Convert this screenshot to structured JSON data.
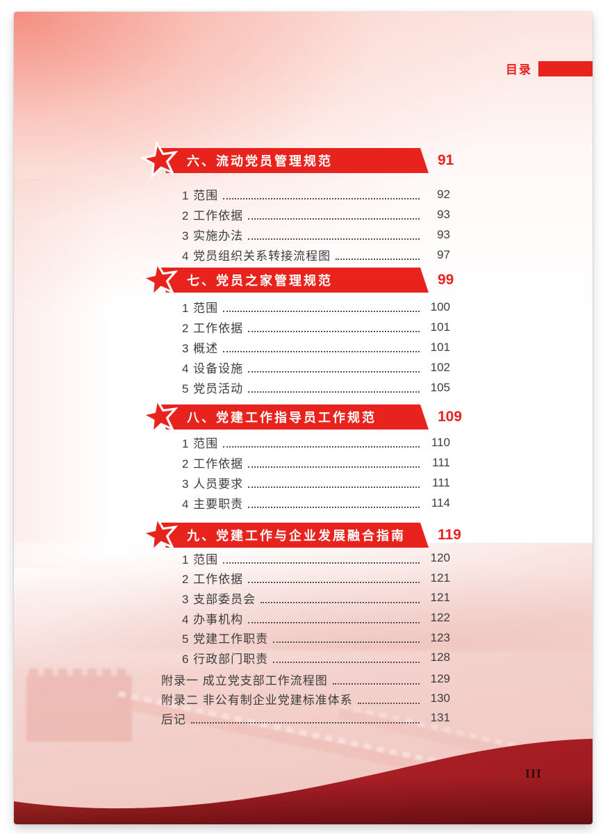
{
  "header": {
    "toc_label": "目录"
  },
  "sections": [
    {
      "title": "六、流动党员管理规范",
      "page": "91",
      "items": [
        {
          "label": "1 范围",
          "page": "92"
        },
        {
          "label": "2 工作依据",
          "page": "93"
        },
        {
          "label": "3 实施办法",
          "page": "93"
        },
        {
          "label": "4 党员组织关系转接流程图",
          "page": "97"
        }
      ]
    },
    {
      "title": "七、党员之家管理规范",
      "page": "99",
      "items": [
        {
          "label": "1 范围",
          "page": "100"
        },
        {
          "label": "2 工作依据",
          "page": "101"
        },
        {
          "label": "3 概述",
          "page": "101"
        },
        {
          "label": "4 设备设施",
          "page": "102"
        },
        {
          "label": "5 党员活动",
          "page": "105"
        }
      ]
    },
    {
      "title": "八、党建工作指导员工作规范",
      "page": "109",
      "items": [
        {
          "label": "1 范围",
          "page": "110"
        },
        {
          "label": "2 工作依据",
          "page": "111"
        },
        {
          "label": "3 人员要求",
          "page": "111"
        },
        {
          "label": "4 主要职责",
          "page": "114"
        }
      ]
    },
    {
      "title": "九、党建工作与企业发展融合指南",
      "page": "119",
      "items": [
        {
          "label": "1 范围",
          "page": "120"
        },
        {
          "label": "2 工作依据",
          "page": "121"
        },
        {
          "label": "3 支部委员会",
          "page": "121"
        },
        {
          "label": "4 办事机构",
          "page": "122"
        },
        {
          "label": "5 党建工作职责",
          "page": "123"
        },
        {
          "label": "6 行政部门职责",
          "page": "128"
        }
      ]
    }
  ],
  "appendix_items": [
    {
      "label": "附录一 成立党支部工作流程图",
      "page": "129"
    },
    {
      "label": "附录二 非公有制企业党建标准体系",
      "page": "130"
    },
    {
      "label": "后记",
      "page": "131"
    }
  ],
  "footer": {
    "page_number": "III"
  },
  "colors": {
    "accent_red": "#e8231d",
    "banner_text": "#ffffff",
    "body_text": "#3c3c3c",
    "wave_bright": "#c8302a",
    "wave_dark": "#8c171c"
  }
}
